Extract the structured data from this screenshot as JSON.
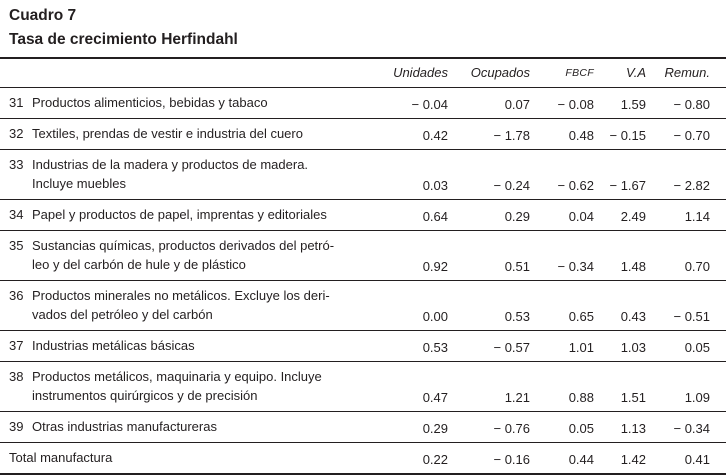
{
  "title": "Cuadro 7",
  "subtitle": "Tasa de crecimiento Herfindahl",
  "colors": {
    "text": "#231f20",
    "rule": "#231f20"
  },
  "table": {
    "columns": [
      "Unidades",
      "Ocupados",
      "FBCF",
      "V.A",
      "Remun."
    ],
    "rows": [
      {
        "code": "31",
        "label": "Productos alimenticios, bebidas y tabaco",
        "values": [
          "− 0.04",
          "0.07",
          "− 0.08",
          "1.59",
          "− 0.80"
        ]
      },
      {
        "code": "32",
        "label": "Textiles, prendas de vestir e industria del cuero",
        "values": [
          "0.42",
          "− 1.78",
          "0.48",
          "− 0.15",
          "− 0.70"
        ]
      },
      {
        "code": "33",
        "label": "Industrias de la madera y productos de madera.\nIncluye muebles",
        "values": [
          "0.03",
          "− 0.24",
          "− 0.62",
          "− 1.67",
          "− 2.82"
        ]
      },
      {
        "code": "34",
        "label": "Papel y productos de papel, imprentas y editoriales",
        "values": [
          "0.64",
          "0.29",
          "0.04",
          "2.49",
          "1.14"
        ]
      },
      {
        "code": "35",
        "label": "Sustancias químicas, productos derivados del petró-\nleo y del carbón de hule y de plástico",
        "values": [
          "0.92",
          "0.51",
          "− 0.34",
          "1.48",
          "0.70"
        ]
      },
      {
        "code": "36",
        "label": "Productos minerales no metálicos. Excluye los deri-\nvados del petróleo y del carbón",
        "values": [
          "0.00",
          "0.53",
          "0.65",
          "0.43",
          "− 0.51"
        ]
      },
      {
        "code": "37",
        "label": "Industrias metálicas básicas",
        "values": [
          "0.53",
          "− 0.57",
          "1.01",
          "1.03",
          "0.05"
        ]
      },
      {
        "code": "38",
        "label": "Productos metálicos, maquinaria y equipo. Incluye\ninstrumentos quirúrgicos y de precisión",
        "values": [
          "0.47",
          "1.21",
          "0.88",
          "1.51",
          "1.09"
        ]
      },
      {
        "code": "39",
        "label": "Otras industrias manufactureras",
        "values": [
          "0.29",
          "− 0.76",
          "0.05",
          "1.13",
          "− 0.34"
        ]
      },
      {
        "code": "",
        "label": "Total manufactura",
        "values": [
          "0.22",
          "− 0.16",
          "0.44",
          "1.42",
          "0.41"
        ]
      }
    ]
  }
}
